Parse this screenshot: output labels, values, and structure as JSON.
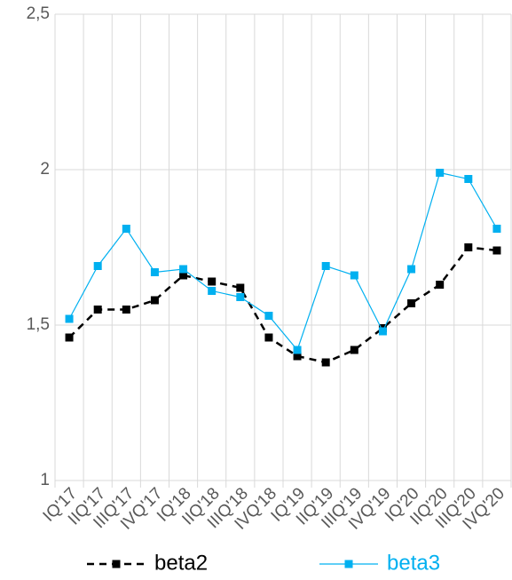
{
  "chart_data": {
    "type": "line",
    "categories": [
      "IQ'17",
      "IIQ'17",
      "IIIQ'17",
      "IVQ'17",
      "IQ'18",
      "IIQ'18",
      "IIIQ'18",
      "IVQ'18",
      "IQ'19",
      "IIQ'19",
      "IIIQ'19",
      "IVQ'19",
      "IQ'20",
      "IIQ'20",
      "IIIQ'20",
      "IVQ'20"
    ],
    "series": [
      {
        "name": "beta2",
        "color": "#000000",
        "dashed": true,
        "values": [
          1.46,
          1.55,
          1.55,
          1.58,
          1.66,
          1.64,
          1.62,
          1.46,
          1.4,
          1.38,
          1.42,
          1.49,
          1.57,
          1.63,
          1.75,
          1.74
        ]
      },
      {
        "name": "beta3",
        "color": "#00b0f0",
        "dashed": false,
        "values": [
          1.52,
          1.69,
          1.81,
          1.67,
          1.68,
          1.61,
          1.59,
          1.53,
          1.42,
          1.69,
          1.66,
          1.48,
          1.68,
          1.99,
          1.97,
          1.81
        ]
      }
    ],
    "ylim": [
      1,
      2.5
    ],
    "yticks": [
      1,
      {
        "value": 1.5,
        "label": "1,5"
      },
      2,
      {
        "value": 2.5,
        "label": "2,5"
      }
    ],
    "grid": true
  }
}
